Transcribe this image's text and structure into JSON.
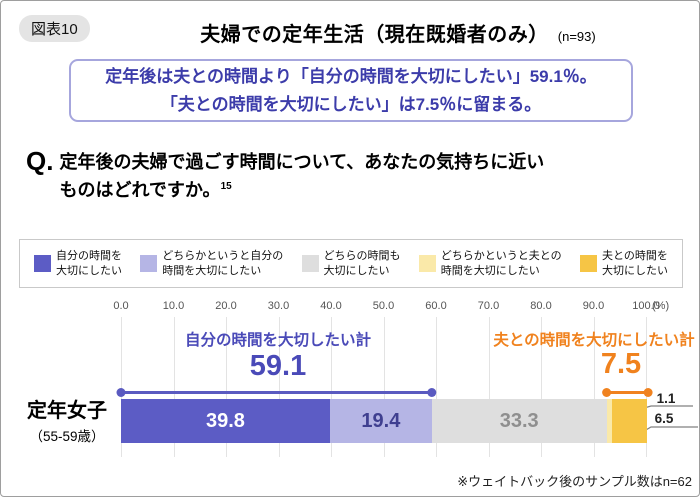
{
  "figure": {
    "badge": "図表10",
    "title": "夫婦での定年生活（現在既婚者のみ）",
    "sample": "(n=93)"
  },
  "highlight": {
    "line1": "定年後は夫との時間より「自分の時間を大切にしたい」59.1％。",
    "line2": "「夫との時間を大切にしたい」は7.5％に留まる。"
  },
  "question": {
    "prefix": "Q.",
    "line1": "定年後の夫婦で過ごす時間について、あなたの気持ちに近い",
    "line2": "ものはどれですか。",
    "footnote_ref": "15"
  },
  "chart_data": {
    "type": "bar",
    "orientation": "horizontal",
    "stacked": true,
    "title": "夫婦での定年生活（現在既婚者のみ）",
    "categories": [
      "定年女子（55-59歳）"
    ],
    "row": {
      "label": "定年女子",
      "sublabel": "（55-59歳）"
    },
    "axis": {
      "ticks": [
        "0.0",
        "10.0",
        "20.0",
        "30.0",
        "40.0",
        "50.0",
        "60.0",
        "70.0",
        "80.0",
        "90.0",
        "100.0"
      ],
      "unit": "(%)",
      "range": [
        0,
        100
      ],
      "grid": true
    },
    "series": [
      {
        "name": "自分の時間を大切にしたい",
        "value": 39.8,
        "display": "39.8",
        "color": "#5c5cc5",
        "label_color": "#ffffff",
        "legend": [
          "自分の時間を",
          "大切にしたい"
        ],
        "label_outside": false
      },
      {
        "name": "どちらかというと自分の時間を大切にしたい",
        "value": 19.4,
        "display": "19.4",
        "color": "#b5b5e5",
        "label_color": "#3f3f90",
        "legend": [
          "どちらかというと自分の",
          "時間を大切にしたい"
        ],
        "label_outside": false
      },
      {
        "name": "どちらの時間も大切にしたい",
        "value": 33.3,
        "display": "33.3",
        "color": "#dedede",
        "label_color": "#8f8f8f",
        "legend": [
          "どちらの時間も",
          "大切にしたい"
        ],
        "label_outside": false
      },
      {
        "name": "どちらかというと夫との時間を大切にしたい",
        "value": 1.1,
        "display": "1.1",
        "color": "#fae9a9",
        "label_color": "#222222",
        "legend": [
          "どちらかというと夫との",
          "時間を大切にしたい"
        ],
        "label_outside": true
      },
      {
        "name": "夫との時間を大切にしたい",
        "value": 6.5,
        "display": "6.5",
        "color": "#f6c545",
        "label_color": "#222222",
        "legend": [
          "夫との時間を",
          "大切にしたい"
        ],
        "label_outside": true
      }
    ],
    "aggregates": [
      {
        "label": "自分の時間を大切したい計",
        "value": "59.1",
        "color": "#5a5ac0",
        "text_color": "#4a4ab8",
        "span": [
          0,
          59.2
        ]
      },
      {
        "label": "夫との時間を大切にしたい計",
        "value": "7.5",
        "color": "#f0821e",
        "text_color": "#f0821e",
        "span": [
          92.5,
          100.4
        ]
      }
    ],
    "footnote": "※ウェイトバック後のサンプル数はn=62"
  }
}
